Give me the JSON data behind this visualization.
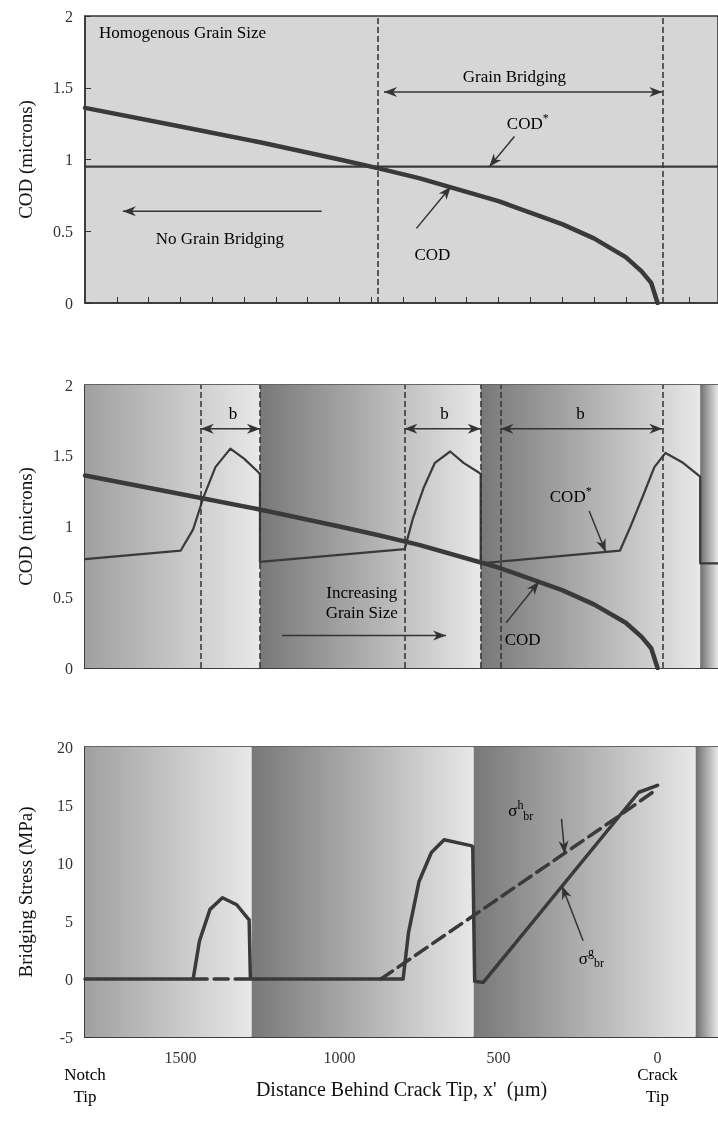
{
  "chart_data": [
    {
      "type": "line",
      "ylabel": "COD (microns)",
      "xlim": [
        1800,
        -190
      ],
      "ylim": [
        0,
        2
      ],
      "yticks": [
        0,
        0.5,
        1,
        1.5,
        2
      ],
      "tick_labels": "y",
      "marker": "none",
      "xticks": [
        {
          "value": 1700,
          "label": null
        },
        {
          "value": 1600,
          "label": null
        },
        1500,
        {
          "value": 1400,
          "label": null
        },
        {
          "value": 1300,
          "label": null
        },
        {
          "value": 1200,
          "label": null
        },
        {
          "value": 1100,
          "label": null
        },
        1000,
        {
          "value": 900,
          "label": null
        },
        {
          "value": 800,
          "label": null
        },
        {
          "value": 700,
          "label": null
        },
        {
          "value": 600,
          "label": null
        },
        500,
        {
          "value": 400,
          "label": null
        },
        {
          "value": 300,
          "label": null
        },
        {
          "value": 200,
          "label": null
        },
        {
          "value": 100,
          "label": null
        },
        0,
        {
          "value": -100,
          "label": null
        }
      ],
      "series": [
        {
          "color": "#3a3a3a",
          "x": [
            1800,
            1500,
            1250,
            1000,
            880,
            750,
            500,
            300,
            200,
            100,
            50,
            20,
            0
          ],
          "values": [
            1.36,
            1.23,
            1.12,
            1.0,
            0.94,
            0.87,
            0.71,
            0.55,
            0.45,
            0.32,
            0.22,
            0.14,
            0
          ]
        },
        {
          "color": "#3a3a3a",
          "x": [
            1800,
            -190
          ],
          "values": [
            0.95,
            0.95
          ]
        }
      ],
      "ref_lines": [
        {
          "axis": "x",
          "value": 880,
          "line_style": "dashed",
          "color": "#333333"
        },
        {
          "axis": "x",
          "value": -15,
          "line_style": "dashed",
          "color": "#333333"
        }
      ],
      "annotations": [
        "Homogenous Grain Size",
        "Grain Bridging",
        {
          "text": "COD$^{*}$",
          "x": 529,
          "y": 0.95
        },
        "No Grain Bridging",
        {
          "text": "COD",
          "x": 650,
          "y": 0.81
        }
      ]
    },
    {
      "type": "line",
      "ylabel": "COD (microns)",
      "xlim": [
        1800,
        -190
      ],
      "ylim": [
        0,
        2
      ],
      "yticks": [
        0,
        0.5,
        1,
        1.5,
        2
      ],
      "tick_labels": "y",
      "marker": "none",
      "xticks": [
        {
          "value": 1700,
          "label": null
        },
        {
          "value": 1600,
          "label": null
        },
        1500,
        {
          "value": 1400,
          "label": null
        },
        {
          "value": 1300,
          "label": null
        },
        {
          "value": 1200,
          "label": null
        },
        {
          "value": 1100,
          "label": null
        },
        1000,
        {
          "value": 900,
          "label": null
        },
        {
          "value": 800,
          "label": null
        },
        {
          "value": 700,
          "label": null
        },
        {
          "value": 600,
          "label": null
        },
        500,
        {
          "value": 400,
          "label": null
        },
        {
          "value": 300,
          "label": null
        },
        {
          "value": 200,
          "label": null
        },
        {
          "value": 100,
          "label": null
        },
        0,
        {
          "value": -100,
          "label": null
        }
      ],
      "series": [
        {
          "color": "#3a3a3a",
          "x": [
            1800,
            1499,
            1460,
            1427,
            1390,
            1343,
            1300,
            1258,
            1250,
            1250,
            795,
            770,
            736,
            700,
            652,
            610,
            561,
            556,
            556,
            118,
            85,
            47,
            10,
            -25,
            -80,
            -130,
            -134,
            -134,
            -190
          ],
          "values": [
            0.77,
            0.83,
            0.98,
            1.21,
            1.42,
            1.55,
            1.48,
            1.39,
            1.37,
            0.75,
            0.84,
            1.05,
            1.27,
            1.45,
            1.53,
            1.45,
            1.38,
            1.37,
            0.74,
            0.83,
            1.0,
            1.21,
            1.42,
            1.52,
            1.45,
            1.36,
            1.35,
            0.74,
            0.74
          ]
        },
        {
          "color": "#3a3a3a",
          "x": [
            1800,
            1500,
            1250,
            1000,
            880,
            750,
            500,
            300,
            200,
            100,
            50,
            20,
            0
          ],
          "values": [
            1.36,
            1.23,
            1.12,
            1.0,
            0.94,
            0.87,
            0.71,
            0.55,
            0.45,
            0.32,
            0.22,
            0.14,
            0
          ]
        }
      ],
      "bands": [
        {
          "axis": "x",
          "from": 1800,
          "to": 1250,
          "color": "#a0a0a0"
        },
        {
          "axis": "x",
          "from": 1250,
          "to": 556,
          "color": "#787878"
        },
        {
          "axis": "x",
          "from": 556,
          "to": -134,
          "color": "#787878"
        },
        {
          "axis": "x",
          "from": -134,
          "to": -190,
          "color": "#6e6e6e"
        }
      ],
      "ref_lines": [
        {
          "axis": "x",
          "value": 1436,
          "line_style": "dashed",
          "color": "#333333"
        },
        {
          "axis": "x",
          "value": 1250,
          "line_style": "dashed",
          "color": "#333333"
        },
        {
          "axis": "x",
          "value": 796,
          "line_style": "dashed",
          "color": "#333333"
        },
        {
          "axis": "x",
          "value": 556,
          "line_style": "dashed",
          "color": "#333333"
        },
        {
          "axis": "x",
          "value": 494,
          "line_style": "dashed",
          "color": "#333333"
        },
        {
          "axis": "x",
          "value": -15,
          "line_style": "dashed",
          "color": "#333333"
        }
      ],
      "annotations": [
        "b",
        "b",
        "b",
        {
          "text": "COD$^{*}$",
          "x": 163,
          "y": 0.82
        },
        "Increasing\nGrain Size",
        {
          "text": "COD",
          "x": 373,
          "y": 0.61
        }
      ]
    },
    {
      "type": "line",
      "xlabel": "Distance Behind Crack Tip, x'  (µm)",
      "ylabel": "Bridging Stress (MPa)",
      "xlim": [
        1800,
        -190
      ],
      "ylim": [
        -5,
        20
      ],
      "yticks": [
        -5,
        0,
        5,
        10,
        15,
        20
      ],
      "marker": "none",
      "xticks": [
        {
          "value": 1700,
          "label": null
        },
        {
          "value": 1600,
          "label": null
        },
        1500,
        {
          "value": 1400,
          "label": null
        },
        {
          "value": 1300,
          "label": null
        },
        {
          "value": 1200,
          "label": null
        },
        {
          "value": 1100,
          "label": null
        },
        1000,
        {
          "value": 900,
          "label": null
        },
        {
          "value": 800,
          "label": null
        },
        {
          "value": 700,
          "label": null
        },
        {
          "value": 600,
          "label": null
        },
        500,
        {
          "value": 400,
          "label": null
        },
        {
          "value": 300,
          "label": null
        },
        {
          "value": 200,
          "label": null
        },
        {
          "value": 100,
          "label": null
        },
        0,
        {
          "value": -100,
          "label": null
        }
      ],
      "series": [
        {
          "color": "#3a3a3a",
          "x": [
            1800,
            1460,
            1440,
            1407,
            1368,
            1323,
            1290,
            1284,
            1280,
            1280,
            800,
            783,
            750,
            711,
            671,
            587,
            581,
            575,
            548,
            59,
            0
          ],
          "values": [
            0,
            0,
            3.3,
            6.0,
            7.0,
            6.4,
            5.3,
            5.1,
            0,
            0,
            0,
            4.0,
            8.4,
            10.9,
            12.0,
            11.5,
            11.4,
            -0.2,
            -0.3,
            16.1,
            16.7
          ]
        },
        {
          "color": "#3a3a3a",
          "line_style": "dashed",
          "x": [
            1460,
            1280,
            1075,
            870,
            124,
            0
          ],
          "values": [
            0,
            0,
            null,
            0,
            14,
            16.4
          ]
        }
      ],
      "bands": [
        {
          "axis": "x",
          "from": 1800,
          "to": 1276,
          "color": "#a0a0a0"
        },
        {
          "axis": "x",
          "from": 1276,
          "to": 578,
          "color": "#787878"
        },
        {
          "axis": "x",
          "from": 578,
          "to": -120,
          "color": "#787878"
        },
        {
          "axis": "x",
          "from": -120,
          "to": -190,
          "color": "#6e6e6e"
        }
      ],
      "annotations": [
        {
          "text": "σ$^{h}$$_{br}$",
          "x": 292,
          "y": 10.8
        },
        {
          "text": "σ$^{g}$$_{br}$",
          "x": 300,
          "y": 8.0
        },
        "Notch\nTip",
        "Crack\nTip"
      ]
    }
  ]
}
